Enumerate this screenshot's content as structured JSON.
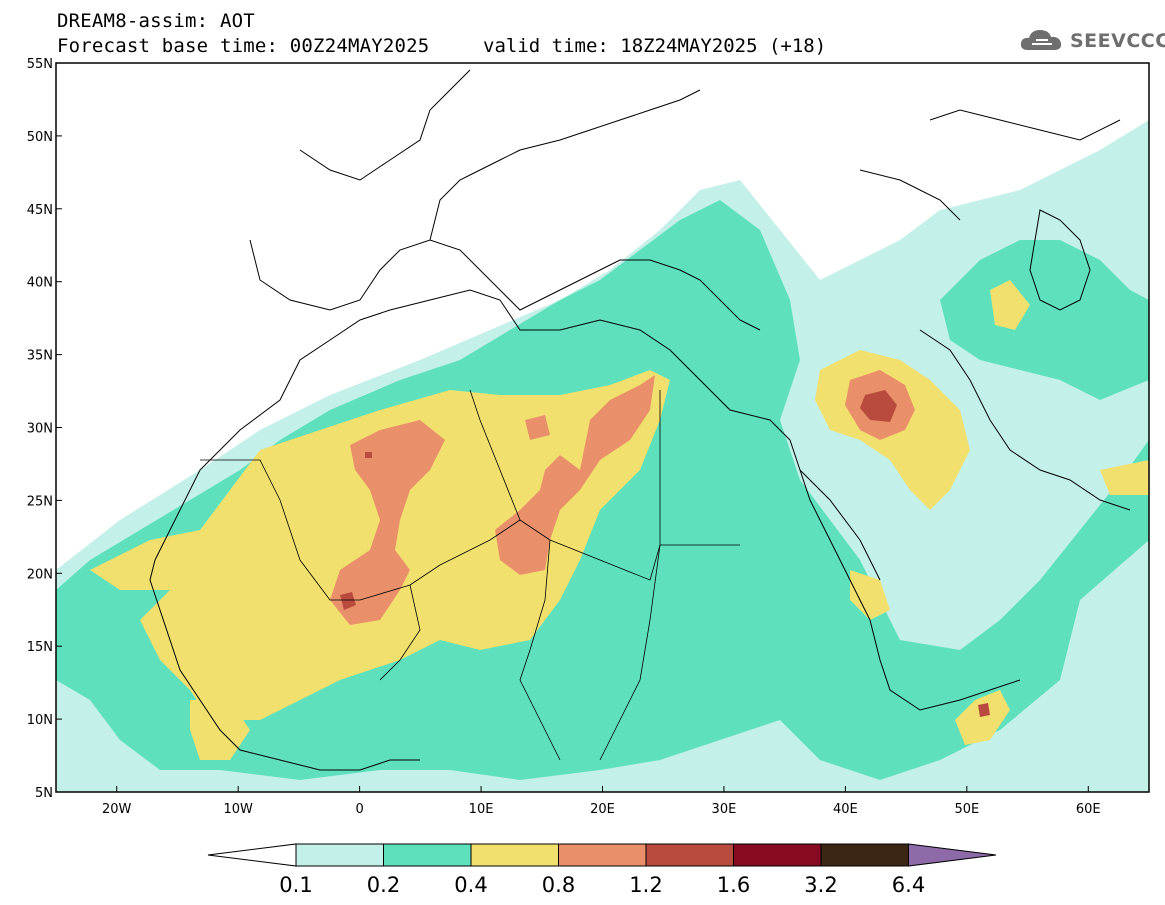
{
  "header": {
    "model_line": "DREAM8-assim: AOT",
    "base_time_line": "Forecast base time: 00Z24MAY2025",
    "valid_time_line": "valid time: 18Z24MAY2025 (+18)",
    "logo_text": "SEEVCCC"
  },
  "map": {
    "lon_range": [
      -25,
      65
    ],
    "lat_range": [
      5,
      55
    ],
    "lat_ticks": [
      "5N",
      "10N",
      "15N",
      "20N",
      "25N",
      "30N",
      "35N",
      "40N",
      "45N",
      "50N",
      "55N"
    ],
    "lon_ticks": [
      "20W",
      "10W",
      "0",
      "10E",
      "20E",
      "30E",
      "40E",
      "50E",
      "60E"
    ],
    "lat_tick_values": [
      5,
      10,
      15,
      20,
      25,
      30,
      35,
      40,
      45,
      50,
      55
    ],
    "lon_tick_values": [
      -20,
      -10,
      0,
      10,
      20,
      30,
      40,
      50,
      60
    ]
  },
  "colorbar": {
    "labels": [
      "0.1",
      "0.2",
      "0.4",
      "0.8",
      "1.2",
      "1.6",
      "3.2",
      "6.4"
    ],
    "colors": [
      "#ffffff",
      "#c4f0ea",
      "#5ee0bd",
      "#f2e06e",
      "#e9906a",
      "#b84a3e",
      "#850a22",
      "#3a2613",
      "#8e6aa9"
    ]
  },
  "colors": {
    "level1": "#c4f0ea",
    "level2": "#5ee0bd",
    "level3": "#f2e06e",
    "level4": "#e9906a",
    "level5": "#b84a3e"
  }
}
